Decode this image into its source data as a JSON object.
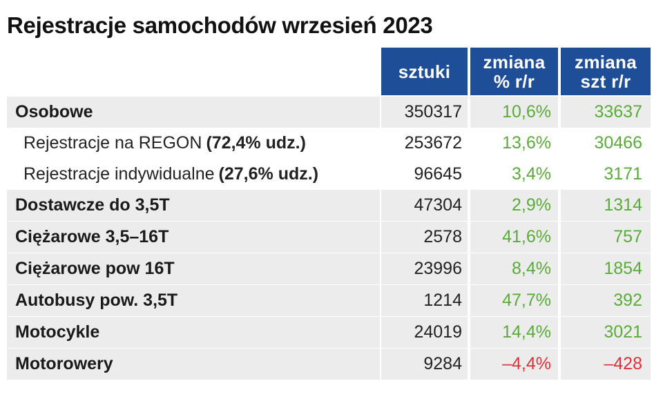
{
  "title": "Rejestracje samochodów wrzesień 2023",
  "colors": {
    "header_bg": "#1f4e99",
    "positive": "#5aab3a",
    "negative": "#e0303a",
    "row_shade": "#ececec"
  },
  "headers": {
    "sztuki": "sztuki",
    "pct_line1": "zmiana",
    "pct_line2": "% r/r",
    "szt_line1": "zmiana",
    "szt_line2": "szt r/r"
  },
  "rows": [
    {
      "label": "Osobowe",
      "extra": "",
      "sztuki": "350317",
      "pct": "10,6%",
      "szt": "33637"
    },
    {
      "label": "Rejestracje na REGON",
      "extra": "(72,4% udz.)",
      "sztuki": "253672",
      "pct": "13,6%",
      "szt": "30466"
    },
    {
      "label": "Rejestracje indywidualne",
      "extra": "(27,6% udz.)",
      "sztuki": "96645",
      "pct": "3,4%",
      "szt": "3171"
    },
    {
      "label": "Dostawcze do 3,5T",
      "extra": "",
      "sztuki": "47304",
      "pct": "2,9%",
      "szt": "1314"
    },
    {
      "label": "Ciężarowe 3,5–16T",
      "extra": "",
      "sztuki": "2578",
      "pct": "41,6%",
      "szt": "757"
    },
    {
      "label": "Ciężarowe pow 16T",
      "extra": "",
      "sztuki": "23996",
      "pct": "8,4%",
      "szt": "1854"
    },
    {
      "label": "Autobusy pow. 3,5T",
      "extra": "",
      "sztuki": "1214",
      "pct": "47,7%",
      "szt": "392"
    },
    {
      "label": "Motocykle",
      "extra": "",
      "sztuki": "24019",
      "pct": "14,4%",
      "szt": "3021"
    },
    {
      "label": "Motorowery",
      "extra": "",
      "sztuki": "9284",
      "pct": "–4,4%",
      "szt": "–428"
    }
  ]
}
